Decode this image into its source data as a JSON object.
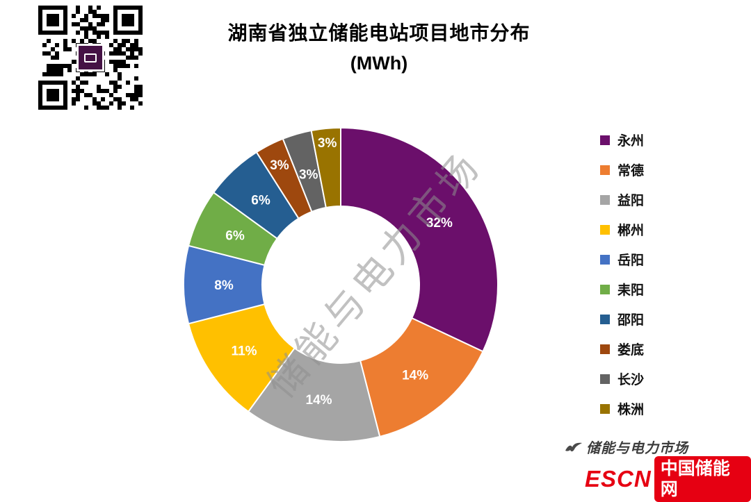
{
  "chart_data": {
    "type": "pie",
    "variant": "donut",
    "title": "湖南省独立储能电站项目地市分布",
    "subtitle": "(MWh)",
    "unit": "MWh",
    "legend_position": "right",
    "start_angle_deg": 0,
    "clockwise": true,
    "hole_ratio": 0.5,
    "categories": [
      "永州",
      "常德",
      "益阳",
      "郴州",
      "岳阳",
      "耒阳",
      "邵阳",
      "娄底",
      "长沙",
      "株洲"
    ],
    "values": [
      32,
      14,
      14,
      11,
      8,
      6,
      6,
      3,
      3,
      3
    ],
    "labels": [
      "32%",
      "14%",
      "14%",
      "11%",
      "8%",
      "6%",
      "6%",
      "3%",
      "3%",
      "3%"
    ],
    "colors": [
      "#6B0F6B",
      "#ED7D31",
      "#A5A5A5",
      "#FFC000",
      "#4472C4",
      "#70AD47",
      "#255E91",
      "#9E480E",
      "#636363",
      "#997300"
    ],
    "label_color": "#ffffff"
  },
  "watermark": {
    "text": "储能与电力市场"
  },
  "footer": {
    "brand_script": "储能与电力市场",
    "logo_escn": "ESCN",
    "logo_site": "中国储能网",
    "brand_red": "#e60012"
  }
}
